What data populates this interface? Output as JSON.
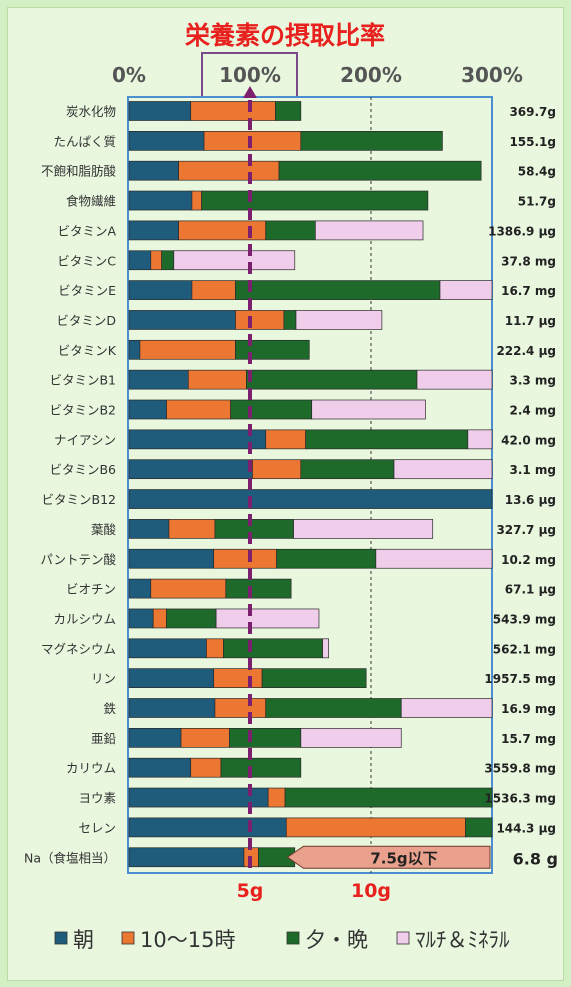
{
  "chart_data": {
    "type": "bar",
    "title": "栄養素の摂取比率",
    "x_ticks": [
      "0%",
      "100%",
      "200%",
      "300%"
    ],
    "x_range": [
      0,
      300
    ],
    "grid": "dashed verticals at 200% and 300%",
    "reference_line": {
      "value": 100,
      "highlight_label": "100%"
    },
    "legend_position": "bottom",
    "stacked": true,
    "series": [
      {
        "name": "朝",
        "color": "#1f5c7c"
      },
      {
        "name": "10～15時",
        "color": "#ec7733"
      },
      {
        "name": "夕・晩",
        "color": "#1e6a2a"
      },
      {
        "name": "ﾏﾙﾁ＆ﾐﾈﾗﾙ",
        "color": "#f0cdea"
      }
    ],
    "rows": [
      {
        "name": "炭水化物",
        "amount": "369.7g",
        "values": [
          51,
          70,
          21,
          0
        ]
      },
      {
        "name": "たんぱく質",
        "amount": "155.1g",
        "values": [
          62,
          80,
          117,
          0
        ]
      },
      {
        "name": "不飽和脂肪酸",
        "amount": "58.4g",
        "values": [
          41,
          83,
          167,
          0
        ]
      },
      {
        "name": "食物繊維",
        "amount": "51.7g",
        "values": [
          52,
          8,
          187,
          0
        ]
      },
      {
        "name": "ビタミンA",
        "amount": "1386.9 μg",
        "values": [
          41,
          72,
          41,
          89
        ]
      },
      {
        "name": "ビタミンC",
        "amount": "37.8 mg",
        "values": [
          18,
          9,
          10,
          100
        ]
      },
      {
        "name": "ビタミンE",
        "amount": "16.7 mg",
        "values": [
          52,
          36,
          169,
          43
        ]
      },
      {
        "name": "ビタミンD",
        "amount": "11.7 μg",
        "values": [
          88,
          40,
          10,
          71
        ]
      },
      {
        "name": "ビタミンK",
        "amount": "222.4 μg",
        "values": [
          9,
          79,
          61,
          0
        ]
      },
      {
        "name": "ビタミンB1",
        "amount": "3.3 mg",
        "values": [
          49,
          48,
          141,
          70
        ]
      },
      {
        "name": "ビタミンB2",
        "amount": "2.4 mg",
        "values": [
          31,
          53,
          67,
          94
        ]
      },
      {
        "name": "ナイアシン",
        "amount": "42.0 mg",
        "values": [
          113,
          33,
          134,
          40
        ]
      },
      {
        "name": "ビタミンB6",
        "amount": "3.1 mg",
        "values": [
          102,
          40,
          77,
          99
        ]
      },
      {
        "name": "ビタミンB12",
        "amount": "13.6 μg",
        "values": [
          300,
          0,
          0,
          0
        ]
      },
      {
        "name": "葉酸",
        "amount": "327.7 μg",
        "values": [
          33,
          38,
          65,
          115
        ]
      },
      {
        "name": "パントテン酸",
        "amount": "10.2 mg",
        "values": [
          70,
          52,
          82,
          140
        ]
      },
      {
        "name": "ビオチン",
        "amount": "67.1 μg",
        "values": [
          18,
          62,
          54,
          0
        ]
      },
      {
        "name": "カルシウム",
        "amount": "543.9 mg",
        "values": [
          20,
          11,
          41,
          85
        ]
      },
      {
        "name": "マグネシウム",
        "amount": "562.1 mg",
        "values": [
          64,
          14,
          82,
          5
        ]
      },
      {
        "name": "リン",
        "amount": "1957.5 mg",
        "values": [
          70,
          40,
          86,
          0
        ]
      },
      {
        "name": "鉄",
        "amount": "16.9 mg",
        "values": [
          71,
          42,
          112,
          95
        ]
      },
      {
        "name": "亜鉛",
        "amount": "15.7 mg",
        "values": [
          43,
          40,
          59,
          83
        ]
      },
      {
        "name": "カリウム",
        "amount": "3559.8 mg",
        "values": [
          51,
          25,
          66,
          0
        ]
      },
      {
        "name": "ヨウ素",
        "amount": "1536.3 mg",
        "values": [
          115,
          14,
          171,
          0
        ]
      },
      {
        "name": "セレン",
        "amount": "144.3 μg",
        "values": [
          130,
          148,
          23,
          0
        ]
      },
      {
        "name": "Na（食塩相当）",
        "amount": "6.8 g",
        "values": [
          95,
          12,
          30,
          0
        ]
      }
    ],
    "na_axis": {
      "ticks": [
        {
          "label": "5g",
          "value": 5
        },
        {
          "label": "10g",
          "value": 10
        }
      ],
      "limit_label": "7.5g以下",
      "limit_value": 7.5
    }
  }
}
